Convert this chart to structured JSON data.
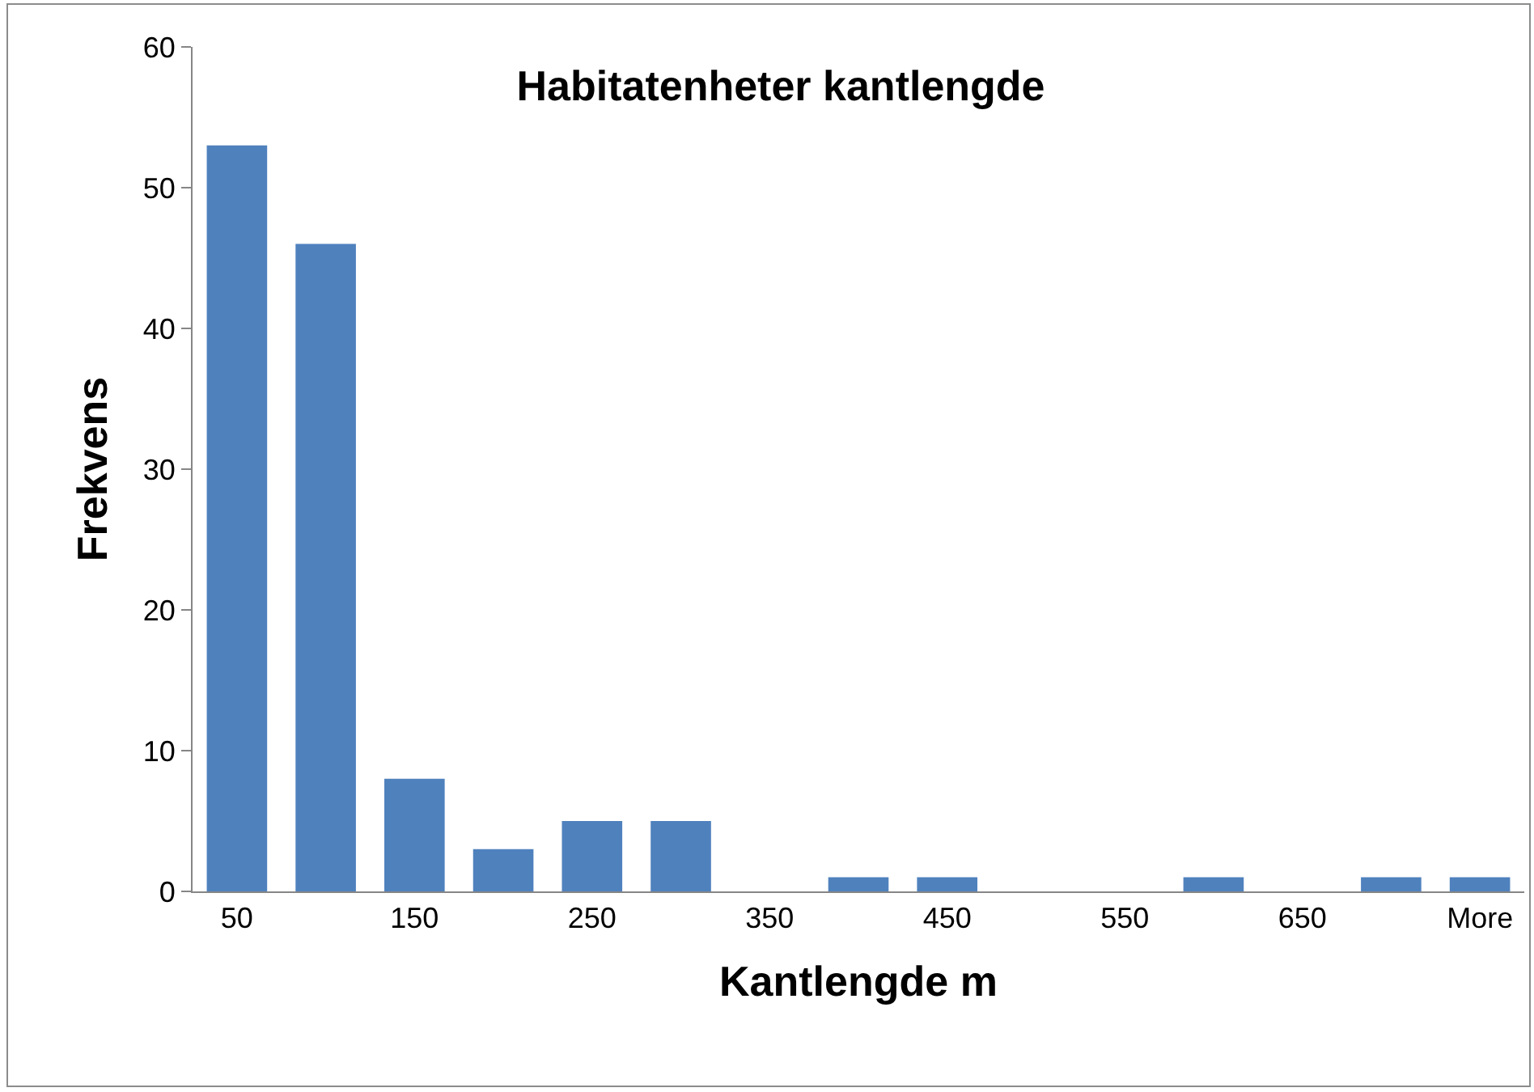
{
  "chart_data": {
    "type": "bar",
    "title": "Habitatenheter kantlengde",
    "xlabel": "Kantlengde m",
    "ylabel": "Frekvens",
    "categories": [
      "50",
      null,
      "150",
      null,
      "250",
      null,
      "350",
      null,
      "450",
      null,
      "550",
      null,
      "650",
      null,
      "More"
    ],
    "values": [
      53,
      46,
      8,
      3,
      5,
      5,
      0,
      1,
      1,
      0,
      0,
      1,
      0,
      1,
      1
    ],
    "color": "#4f81bd",
    "ylim": [
      0,
      60
    ],
    "yticks": [
      0,
      10,
      20,
      30,
      40,
      50,
      60
    ],
    "grid": false,
    "legend": false
  }
}
